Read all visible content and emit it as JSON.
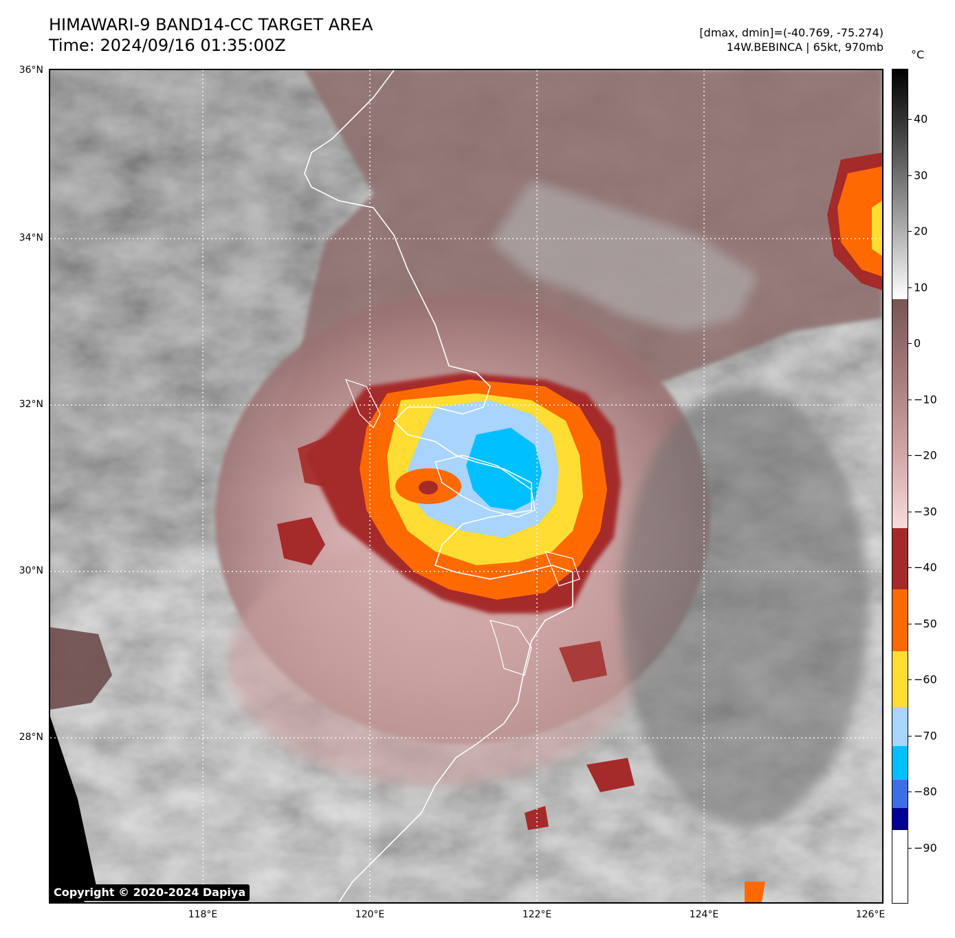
{
  "header": {
    "title_line1": "HIMAWARI-9 BAND14-CC TARGET AREA",
    "title_line2": "Time: 2024/09/16 01:35:00Z",
    "stats_line1": "[dmax, dmin]=(-40.769, -75.274)",
    "stats_line2": "14W.BEBINCA | 65kt, 970mb"
  },
  "map": {
    "lat_labels": [
      "36°N",
      "34°N",
      "32°N",
      "30°N",
      "28°N"
    ],
    "lon_labels": [
      "118°E",
      "120°E",
      "122°E",
      "124°E",
      "126°E"
    ],
    "lat_values": [
      36,
      34,
      32,
      30,
      28
    ],
    "lon_values": [
      118,
      120,
      122,
      124,
      126
    ],
    "extent": {
      "lon_min": 116.2,
      "lon_max": 126.2,
      "lat_min": 26.2,
      "lat_max": 36.0
    },
    "copyright": "Copyright © 2020-2024 Dapiya"
  },
  "colorbar": {
    "unit": "°C",
    "tick_labels": [
      "40",
      "30",
      "20",
      "10",
      "0",
      "−10",
      "−20",
      "−30",
      "−40",
      "−50",
      "−60",
      "−70",
      "−80",
      "−90"
    ],
    "tick_values": [
      40,
      30,
      20,
      10,
      0,
      -10,
      -20,
      -30,
      -40,
      -50,
      -60,
      -70,
      -80,
      -90
    ],
    "range": [
      -100,
      49
    ],
    "segments": [
      {
        "from": -100,
        "to": -87,
        "color": "#ffffff"
      },
      {
        "from": -87,
        "to": -83,
        "color": "#000096"
      },
      {
        "from": -83,
        "to": -78,
        "color": "#3c6ee6"
      },
      {
        "from": -78,
        "to": -72,
        "color": "#00bfff"
      },
      {
        "from": -72,
        "to": -65,
        "color": "#a8d4ff"
      },
      {
        "from": -65,
        "to": -55,
        "color": "#ffdd33"
      },
      {
        "from": -55,
        "to": -44,
        "color": "#ff6a00"
      },
      {
        "from": -44,
        "to": -33,
        "color": "#a52a2a"
      },
      {
        "from": -33,
        "to": 8,
        "gradient": [
          "#f7dcdc",
          "#cfa5a5",
          "#a57b7b",
          "#775656"
        ]
      },
      {
        "from": 8,
        "to": 49,
        "gradient": [
          "#ffffff",
          "#bcbcbc",
          "#7a7a7a",
          "#3a3a3a",
          "#000000"
        ]
      }
    ]
  }
}
